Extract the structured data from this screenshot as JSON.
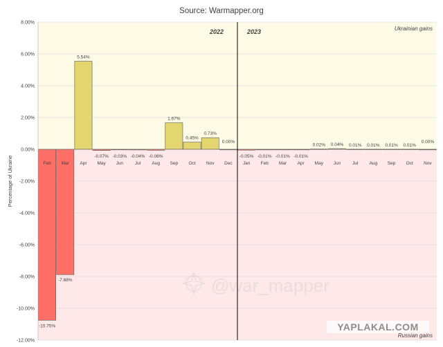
{
  "chart_data": {
    "type": "bar",
    "title": "Source: Warmapper.org",
    "ylabel": "Percentage of Ukraine",
    "xlabel": "",
    "ylim": [
      -12,
      8
    ],
    "ytick_step": 2,
    "yticks": [
      "8.00%",
      "6.00%",
      "4.00%",
      "2.00%",
      "0.00%",
      "-2.00%",
      "-4.00%",
      "-6.00%",
      "-8.00%",
      "-10.00%",
      "-12.00%"
    ],
    "grid": true,
    "years": [
      {
        "label": "2022",
        "start_index": 0,
        "end_index": 10
      },
      {
        "label": "2023",
        "start_index": 11,
        "end_index": 21
      }
    ],
    "region_labels": {
      "positive": "Ukrainian gains",
      "negative": "Russian gains"
    },
    "categories": [
      "Feb",
      "Mar",
      "Apr",
      "May",
      "Jun",
      "Jul",
      "Aug",
      "Sep",
      "Oct",
      "Nov",
      "Dec",
      "Jan",
      "Feb",
      "Mar",
      "Apr",
      "May",
      "Jun",
      "Jul",
      "Aug",
      "Sep",
      "Oct",
      "Nov"
    ],
    "values": [
      -10.75,
      -7.88,
      5.54,
      -0.07,
      -0.03,
      -0.04,
      -0.06,
      1.67,
      0.45,
      0.73,
      0.0,
      -0.05,
      -0.01,
      -0.01,
      -0.01,
      0.02,
      0.04,
      0.01,
      0.01,
      0.01,
      0.01,
      0.0
    ],
    "data_labels": [
      "-10.75%",
      "-7.88%",
      "5.54%",
      "-0.07%",
      "-0.03%",
      "-0.04%",
      "-0.06%",
      "1.67%",
      "0.45%",
      "0.73%",
      "0.00%",
      "-0.05%",
      "-0.01%",
      "-0.01%",
      "-0.01%",
      "0.02%",
      "0.04%",
      "0.01%",
      "0.01%",
      "0.01%",
      "0.01%",
      "0.00%"
    ],
    "colors": {
      "positive_bar": "#e3d66f",
      "negative_bar": "#ff6f66",
      "bar_edge": "#555555",
      "positive_bg": "#fdfbe6",
      "negative_bg": "#ffe8e8",
      "gridline": "#d0d0d0"
    }
  },
  "watermarks": {
    "center": "@war_mapper",
    "corner": "YAPLAKAL.COM"
  }
}
